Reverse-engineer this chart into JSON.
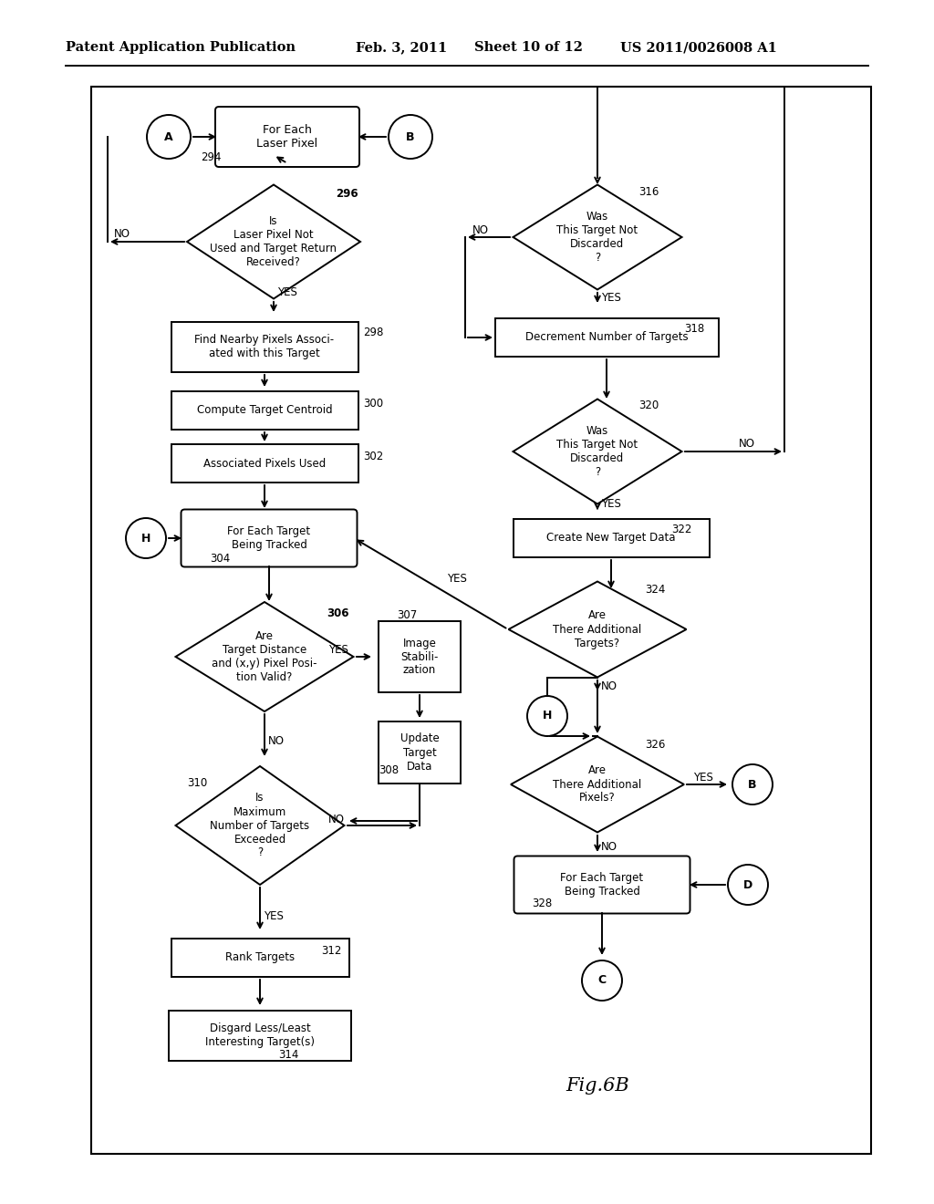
{
  "title_line1": "Patent Application Publication",
  "title_line2": "Feb. 3, 2011",
  "title_line3": "Sheet 10 of 12",
  "title_line4": "US 2011/0026008 A1",
  "fig_label": "Fig.6B",
  "bg_color": "#ffffff"
}
